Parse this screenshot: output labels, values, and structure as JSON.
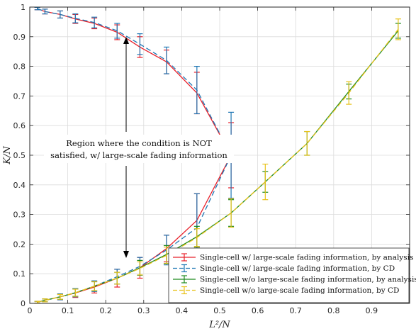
{
  "chart_data": {
    "type": "line",
    "title": "",
    "xlabel": "L²/N",
    "ylabel": "K/N",
    "xlim": [
      0,
      1
    ],
    "ylim": [
      0,
      1
    ],
    "xticks": [
      "0",
      "0.1",
      "0.2",
      "0.3",
      "0.4",
      "0.5",
      "0.6",
      "0.7",
      "0.8",
      "0.9"
    ],
    "yticks": [
      "0",
      "0.1",
      "0.2",
      "0.3",
      "0.4",
      "0.5",
      "0.6",
      "0.7",
      "0.8",
      "0.9",
      "1"
    ],
    "grid": true,
    "legend_position": "bottom-right",
    "annotation": {
      "line1": "Region where the condition is NOT",
      "line2": "satisfied, w/ large-scale fading information"
    },
    "series": [
      {
        "name": "Single-cell w/ large-scale fading information, by analysis",
        "color": "#e8202a",
        "dash": "solid",
        "points": [
          {
            "x": 0.02,
            "y": 0.995,
            "err": 0.004
          },
          {
            "x": 0.04,
            "y": 0.985,
            "err": 0.008
          },
          {
            "x": 0.08,
            "y": 0.975,
            "err": 0.012
          },
          {
            "x": 0.12,
            "y": 0.96,
            "err": 0.015
          },
          {
            "x": 0.17,
            "y": 0.945,
            "err": 0.018
          },
          {
            "x": 0.23,
            "y": 0.915,
            "err": 0.025
          },
          {
            "x": 0.29,
            "y": 0.865,
            "err": 0.035
          },
          {
            "x": 0.36,
            "y": 0.815,
            "err": 0.04
          },
          {
            "x": 0.44,
            "y": 0.71,
            "err": 0.07
          },
          {
            "x": 0.53,
            "y": 0.5,
            "err": 0.11
          },
          {
            "x": 0.44,
            "y": 0.28,
            "err": 0.09
          },
          {
            "x": 0.36,
            "y": 0.185,
            "err": 0.045
          },
          {
            "x": 0.29,
            "y": 0.12,
            "err": 0.035
          },
          {
            "x": 0.23,
            "y": 0.085,
            "err": 0.03
          },
          {
            "x": 0.17,
            "y": 0.055,
            "err": 0.02
          },
          {
            "x": 0.12,
            "y": 0.035,
            "err": 0.015
          },
          {
            "x": 0.08,
            "y": 0.022,
            "err": 0.01
          },
          {
            "x": 0.04,
            "y": 0.01,
            "err": 0.005
          },
          {
            "x": 0.02,
            "y": 0.004,
            "err": 0.003
          }
        ]
      },
      {
        "name": "Single-cell w/ large-scale fading information, by CD",
        "color": "#1f77b4",
        "dash": "dashed",
        "points": [
          {
            "x": 0.02,
            "y": 0.995,
            "err": 0.004
          },
          {
            "x": 0.04,
            "y": 0.985,
            "err": 0.008
          },
          {
            "x": 0.08,
            "y": 0.975,
            "err": 0.012
          },
          {
            "x": 0.12,
            "y": 0.962,
            "err": 0.015
          },
          {
            "x": 0.17,
            "y": 0.948,
            "err": 0.018
          },
          {
            "x": 0.23,
            "y": 0.92,
            "err": 0.025
          },
          {
            "x": 0.29,
            "y": 0.875,
            "err": 0.035
          },
          {
            "x": 0.36,
            "y": 0.82,
            "err": 0.045
          },
          {
            "x": 0.44,
            "y": 0.72,
            "err": 0.08
          },
          {
            "x": 0.53,
            "y": 0.5,
            "err": 0.145
          },
          {
            "x": 0.44,
            "y": 0.255,
            "err": 0.115
          },
          {
            "x": 0.36,
            "y": 0.18,
            "err": 0.05
          },
          {
            "x": 0.29,
            "y": 0.125,
            "err": 0.03
          },
          {
            "x": 0.23,
            "y": 0.09,
            "err": 0.025
          },
          {
            "x": 0.17,
            "y": 0.058,
            "err": 0.018
          },
          {
            "x": 0.12,
            "y": 0.036,
            "err": 0.014
          },
          {
            "x": 0.08,
            "y": 0.022,
            "err": 0.01
          },
          {
            "x": 0.04,
            "y": 0.01,
            "err": 0.005
          },
          {
            "x": 0.02,
            "y": 0.004,
            "err": 0.003
          }
        ]
      },
      {
        "name": "Single-cell w/o large-scale fading information, by analysis",
        "color": "#1e8a1e",
        "dash": "solid",
        "points": [
          {
            "x": 0.02,
            "y": 0.004,
            "err": 0.003
          },
          {
            "x": 0.04,
            "y": 0.01,
            "err": 0.005
          },
          {
            "x": 0.08,
            "y": 0.022,
            "err": 0.008
          },
          {
            "x": 0.12,
            "y": 0.036,
            "err": 0.012
          },
          {
            "x": 0.17,
            "y": 0.058,
            "err": 0.015
          },
          {
            "x": 0.23,
            "y": 0.085,
            "err": 0.02
          },
          {
            "x": 0.29,
            "y": 0.12,
            "err": 0.025
          },
          {
            "x": 0.36,
            "y": 0.165,
            "err": 0.03
          },
          {
            "x": 0.44,
            "y": 0.225,
            "err": 0.035
          },
          {
            "x": 0.53,
            "y": 0.305,
            "err": 0.045
          },
          {
            "x": 0.62,
            "y": 0.41,
            "err": 0.035
          },
          {
            "x": 0.73,
            "y": 0.54,
            "err": 0.04
          },
          {
            "x": 0.84,
            "y": 0.715,
            "err": 0.025
          },
          {
            "x": 0.97,
            "y": 0.92,
            "err": 0.025
          }
        ]
      },
      {
        "name": "Single-cell w/o large-scale fading information, by CD",
        "color": "#e8c21a",
        "dash": "dashed",
        "points": [
          {
            "x": 0.02,
            "y": 0.004,
            "err": 0.003
          },
          {
            "x": 0.04,
            "y": 0.01,
            "err": 0.005
          },
          {
            "x": 0.08,
            "y": 0.022,
            "err": 0.008
          },
          {
            "x": 0.12,
            "y": 0.036,
            "err": 0.012
          },
          {
            "x": 0.17,
            "y": 0.058,
            "err": 0.015
          },
          {
            "x": 0.23,
            "y": 0.085,
            "err": 0.02
          },
          {
            "x": 0.29,
            "y": 0.118,
            "err": 0.022
          },
          {
            "x": 0.36,
            "y": 0.162,
            "err": 0.028
          },
          {
            "x": 0.44,
            "y": 0.222,
            "err": 0.03
          },
          {
            "x": 0.53,
            "y": 0.305,
            "err": 0.048
          },
          {
            "x": 0.62,
            "y": 0.41,
            "err": 0.06
          },
          {
            "x": 0.73,
            "y": 0.54,
            "err": 0.04
          },
          {
            "x": 0.84,
            "y": 0.71,
            "err": 0.038
          },
          {
            "x": 0.97,
            "y": 0.925,
            "err": 0.035
          }
        ]
      }
    ]
  }
}
